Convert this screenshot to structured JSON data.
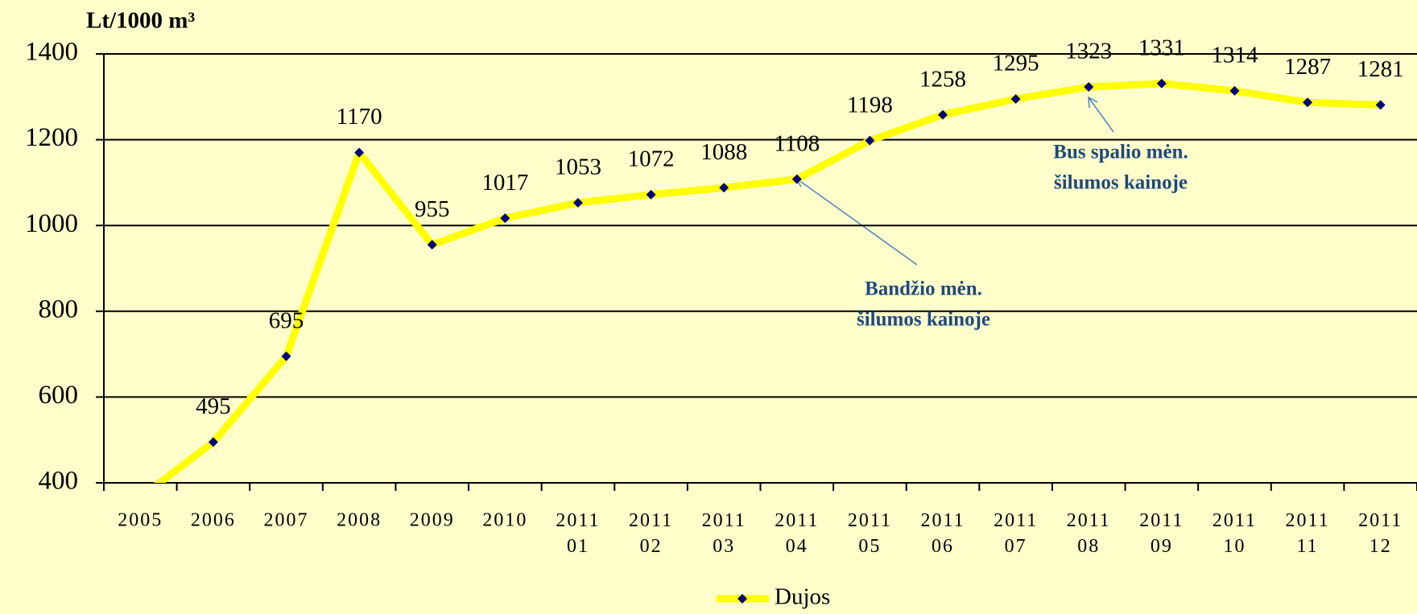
{
  "chart_data": {
    "type": "line",
    "title": "Lt/1000 m³",
    "categories": [
      "2005",
      "2006",
      "2007",
      "2008",
      "2009",
      "2010",
      "2011 01",
      "2011 02",
      "2011 03",
      "2011 04",
      "2011 05",
      "2011 06",
      "2011 07",
      "2011 08",
      "2011 09",
      "2011 10",
      "2011 11",
      "2011 12"
    ],
    "series": [
      {
        "name": "Dujos",
        "color": "#ffff00",
        "marker_color": "#000080",
        "values": [
          366,
          495,
          695,
          1170,
          955,
          1017,
          1053,
          1072,
          1088,
          1108,
          1198,
          1258,
          1295,
          1323,
          1331,
          1314,
          1287,
          1281
        ],
        "value_labels": [
          null,
          "495",
          "695",
          "1170",
          "955",
          "1017",
          "1053",
          "1072",
          "1088",
          "1108",
          "1198",
          "1258",
          "1295",
          "1323",
          "1331",
          "1314",
          "1287",
          "1281"
        ]
      }
    ],
    "ylim": [
      400,
      1400
    ],
    "yticks": [
      400,
      600,
      800,
      1000,
      1200,
      1400
    ],
    "grid": true,
    "legend": "bottom",
    "annotations": [
      {
        "lines": [
          "Bandžio mėn.",
          "šilumos kainoje"
        ]
      },
      {
        "lines": [
          "Bus spalio mėn.",
          "šilumos kainoje"
        ]
      }
    ]
  }
}
